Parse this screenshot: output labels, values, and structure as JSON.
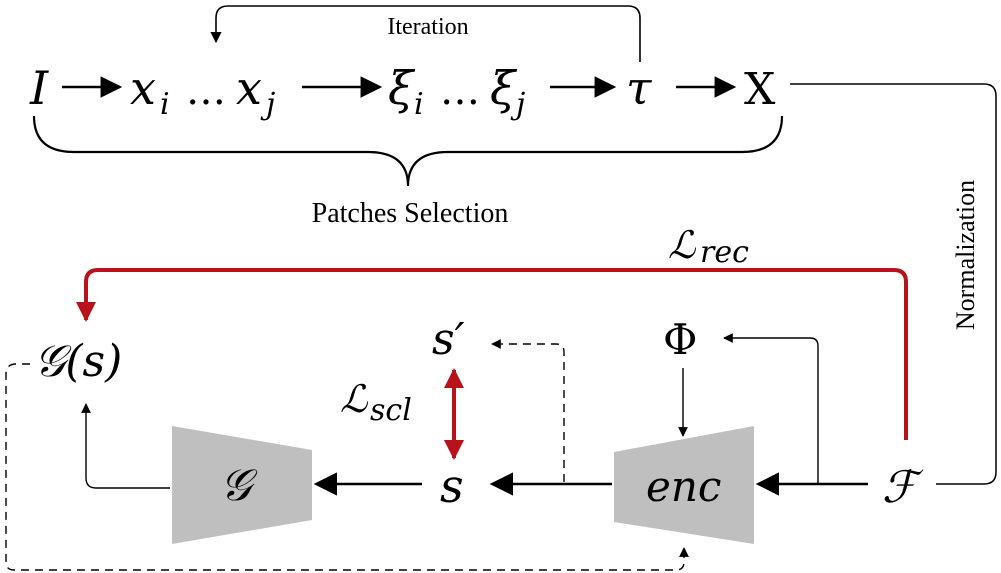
{
  "labels": {
    "iteration": "Iteration",
    "patches_selection": "Patches Selection",
    "normalization": "Normalization"
  },
  "symbols": {
    "I": "I",
    "x_i": "x",
    "x_i_sub": "i",
    "dots1": "…",
    "x_j": "x",
    "x_j_sub": "j",
    "xi_i": "ξ",
    "xi_i_sub": "i",
    "dots2": "…",
    "xi_j": "ξ",
    "xi_j_sub": "j",
    "tau": "τ",
    "X": "X",
    "L_rec": "ℒ",
    "L_rec_sub": "rec",
    "G_s": "𝒢(s)",
    "s_prime": "s′",
    "Phi": "Φ",
    "L_scl": "ℒ",
    "L_scl_sub": "scl",
    "G": "𝒢",
    "s": "s",
    "enc": "enc",
    "F": "ℱ"
  },
  "colors": {
    "accent_red": "#b8121b",
    "block_gray": "#bfbfbf",
    "line": "#000000"
  }
}
